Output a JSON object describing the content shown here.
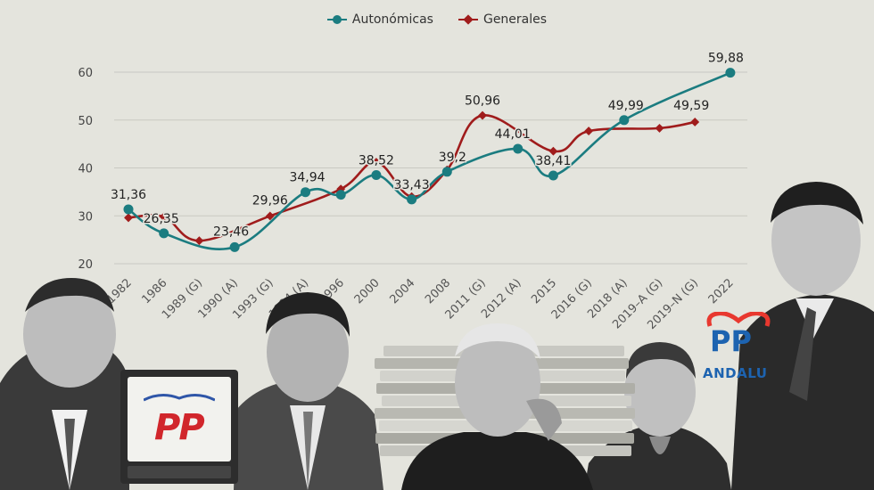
{
  "legend": [
    {
      "name": "Autonómicas",
      "color": "#1b7c80",
      "marker": "circle"
    },
    {
      "name": "Generales",
      "color": "#a01c1c",
      "marker": "diamond"
    }
  ],
  "chart_data": {
    "type": "line",
    "title": "",
    "xlabel": "",
    "ylabel": "",
    "ylim": [
      20,
      60
    ],
    "yticks": [
      20,
      30,
      40,
      50,
      60
    ],
    "grid": true,
    "legend_position": "top-center",
    "categories": [
      "1982",
      "1986",
      "1989 (G)",
      "1990 (A)",
      "1993 (G)",
      "1994 (A)",
      "1996",
      "2000",
      "2004",
      "2008",
      "2011 (G)",
      "2012 (A)",
      "2015",
      "2016 (G)",
      "2018 (A)",
      "2019–A (G)",
      "2019–N (G)",
      "2022"
    ],
    "series": [
      {
        "name": "Autonómicas",
        "color": "#1b7c80",
        "values": [
          31.36,
          26.35,
          null,
          23.46,
          null,
          34.94,
          34.4,
          38.52,
          33.43,
          39.2,
          null,
          44.01,
          38.41,
          null,
          49.99,
          null,
          null,
          59.88
        ]
      },
      {
        "name": "Generales",
        "color": "#a01c1c",
        "values": [
          29.6,
          29.8,
          24.8,
          null,
          29.96,
          null,
          35.6,
          41.2,
          34.0,
          39.6,
          50.96,
          null,
          43.5,
          47.7,
          null,
          48.3,
          49.59,
          null
        ]
      }
    ],
    "data_labels": [
      {
        "text": "31,36",
        "category": "1982",
        "value": 31.36,
        "dx": 0,
        "dy": -12
      },
      {
        "text": "26,35",
        "category": "1986",
        "value": 26.35,
        "dx": -3,
        "dy": -12
      },
      {
        "text": "23,46",
        "category": "1990 (A)",
        "value": 23.46,
        "dx": -4,
        "dy": -13
      },
      {
        "text": "29,96",
        "category": "1993 (G)",
        "value": 29.96,
        "dx": 0,
        "dy": -13
      },
      {
        "text": "34,94",
        "category": "1994 (A)",
        "value": 34.94,
        "dx": 2,
        "dy": -12
      },
      {
        "text": "38,52",
        "category": "2000",
        "value": 38.52,
        "dx": 0,
        "dy": -12
      },
      {
        "text": "33,43",
        "category": "2004",
        "value": 33.43,
        "dx": 0,
        "dy": -12
      },
      {
        "text": "39,2",
        "category": "2008",
        "value": 39.2,
        "dx": 6,
        "dy": -12
      },
      {
        "text": "50,96",
        "category": "2011 (G)",
        "value": 50.96,
        "dx": 0,
        "dy": -12
      },
      {
        "text": "44,01",
        "category": "2012 (A)",
        "value": 44.01,
        "dx": -6,
        "dy": -12
      },
      {
        "text": "38,41",
        "category": "2015",
        "value": 38.41,
        "dx": 0,
        "dy": -12
      },
      {
        "text": "49,99",
        "category": "2018 (A)",
        "value": 49.99,
        "dx": 2,
        "dy": -12
      },
      {
        "text": "49,59",
        "category": "2019–N (G)",
        "value": 49.59,
        "dx": -4,
        "dy": -14
      },
      {
        "text": "59,88",
        "category": "2022",
        "value": 59.88,
        "dx": -5,
        "dy": -12
      }
    ]
  },
  "logo_text": {
    "pp_old": "PP",
    "pp_new": "PP",
    "andalucia": "ANDALU"
  }
}
